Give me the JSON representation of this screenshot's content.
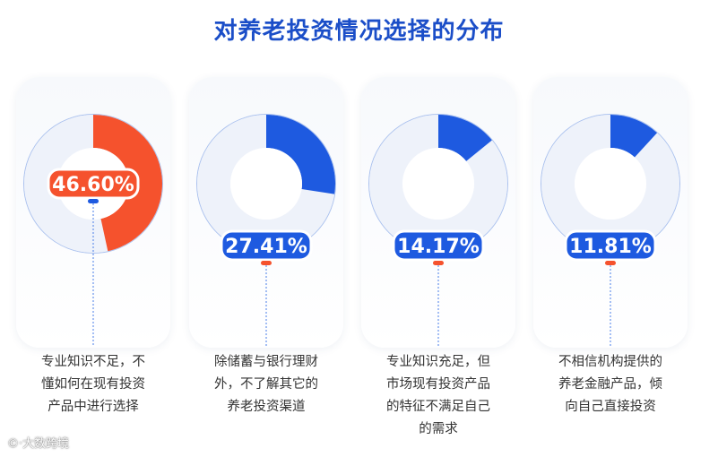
{
  "title": "对养老投资情况选择的分布",
  "chart_data": {
    "type": "pie",
    "title": "对养老投资情况选择的分布",
    "items": [
      {
        "label": "专业知识不足，不懂如何在现有投资产品中进行选择",
        "value": 46.6,
        "display": "46.60%",
        "color": "#f5522d",
        "badge_color": "#f5522d",
        "dot_color": "#1e5ae0"
      },
      {
        "label": "除储蓄与银行理财外，不了解其它的养老投资渠道",
        "value": 27.41,
        "display": "27.41%",
        "color": "#1e5ae0",
        "badge_color": "#1e5ae0",
        "dot_color": "#f5522d"
      },
      {
        "label": "专业知识充足，但市场现有投资产品的特征不满足自己的需求",
        "value": 14.17,
        "display": "14.17%",
        "color": "#1e5ae0",
        "badge_color": "#1e5ae0",
        "dot_color": "#f5522d"
      },
      {
        "label": "不相信机构提供的养老金融产品，倾向自己直接投资",
        "value": 11.81,
        "display": "11.81%",
        "color": "#1e5ae0",
        "badge_color": "#1e5ae0",
        "dot_color": "#f5522d"
      }
    ],
    "descriptions": [
      [
        "专业知识不足，不",
        "懂如何在现有投资",
        "产品中进行选择"
      ],
      [
        "除储蓄与银行理财",
        "外，不了解其它的",
        "养老投资渠道"
      ],
      [
        "专业知识充足，但",
        "市场现有投资产品",
        "的特征不满足自己",
        "的需求"
      ],
      [
        "不相信机构提供的",
        "养老金融产品，倾",
        "向自己直接投资"
      ]
    ]
  },
  "watermark": "大数跨境",
  "colors": {
    "title": "#1b4ec8",
    "ring_bg": "#eef2fa",
    "guide": "#4a7ee8"
  }
}
